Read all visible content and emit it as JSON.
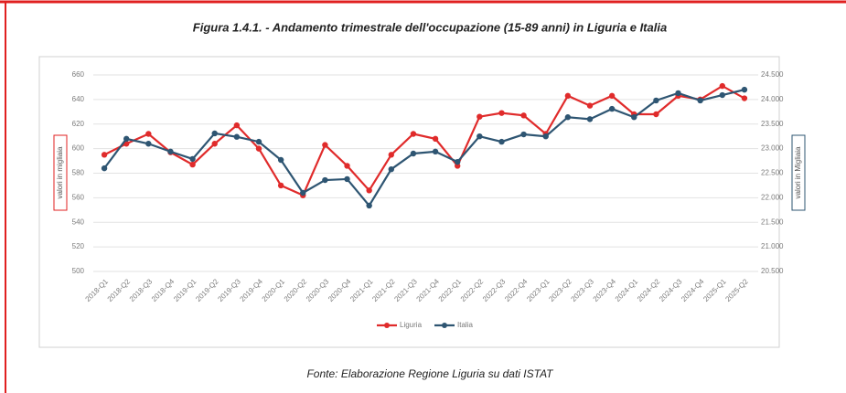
{
  "chart_data": {
    "type": "line",
    "title": "Figura 1.4.1. - Andamento trimestrale dell'occupazione (15-89 anni) in Liguria e Italia",
    "source": "Fonte: Elaborazione Regione Liguria su dati ISTAT",
    "y_label": "valori in migliaia",
    "y2_label": "valori in Migliaia",
    "categories": [
      "2018-Q1",
      "2018-Q2",
      "2018-Q3",
      "2018-Q4",
      "2019-Q1",
      "2019-Q2",
      "2019-Q3",
      "2019-Q4",
      "2020-Q1",
      "2020-Q2",
      "2020-Q3",
      "2020-Q4",
      "2021-Q1",
      "2021-Q2",
      "2021-Q3",
      "2021-Q4",
      "2022-Q1",
      "2022-Q2",
      "2022-Q3",
      "2022-Q4",
      "2023-Q1",
      "2023-Q2",
      "2023-Q3",
      "2023-Q4",
      "2024-Q1",
      "2024-Q2",
      "2024-Q3",
      "2024-Q4",
      "2025-Q1",
      "2025-Q2"
    ],
    "series": [
      {
        "name": "Liguria",
        "color": "#e02b2b",
        "axis": "y",
        "values": [
          595,
          604,
          612,
          597,
          587,
          604,
          619,
          600,
          570,
          562,
          603,
          586,
          566,
          595,
          612,
          608,
          586,
          626,
          629,
          627,
          612,
          643,
          635,
          643,
          628,
          628,
          643,
          640,
          651,
          641
        ]
      },
      {
        "name": "Italia",
        "color": "#2e5572",
        "axis": "y2",
        "values": [
          22600,
          23200,
          23100,
          22940,
          22790,
          23310,
          23240,
          23140,
          22770,
          22100,
          22360,
          22380,
          21840,
          22580,
          22900,
          22940,
          22730,
          23250,
          23140,
          23290,
          23250,
          23640,
          23600,
          23810,
          23640,
          23980,
          24130,
          23980,
          24090,
          24200
        ]
      }
    ],
    "ylim": [
      500,
      660
    ],
    "yticks": [
      500,
      520,
      540,
      560,
      580,
      600,
      620,
      640,
      660
    ],
    "y2lim": [
      20500,
      24500
    ],
    "y2ticks": [
      {
        "value": 20500,
        "label": "20.500"
      },
      {
        "value": 21000,
        "label": "21.000"
      },
      {
        "value": 21500,
        "label": "21.500"
      },
      {
        "value": 22000,
        "label": "22.000"
      },
      {
        "value": 22500,
        "label": "22.500"
      },
      {
        "value": 23000,
        "label": "23.000"
      },
      {
        "value": 23500,
        "label": "23.500"
      },
      {
        "value": 24000,
        "label": "24.000"
      },
      {
        "value": 24500,
        "label": "24.500"
      }
    ],
    "grid": true,
    "legend": "bottom"
  }
}
